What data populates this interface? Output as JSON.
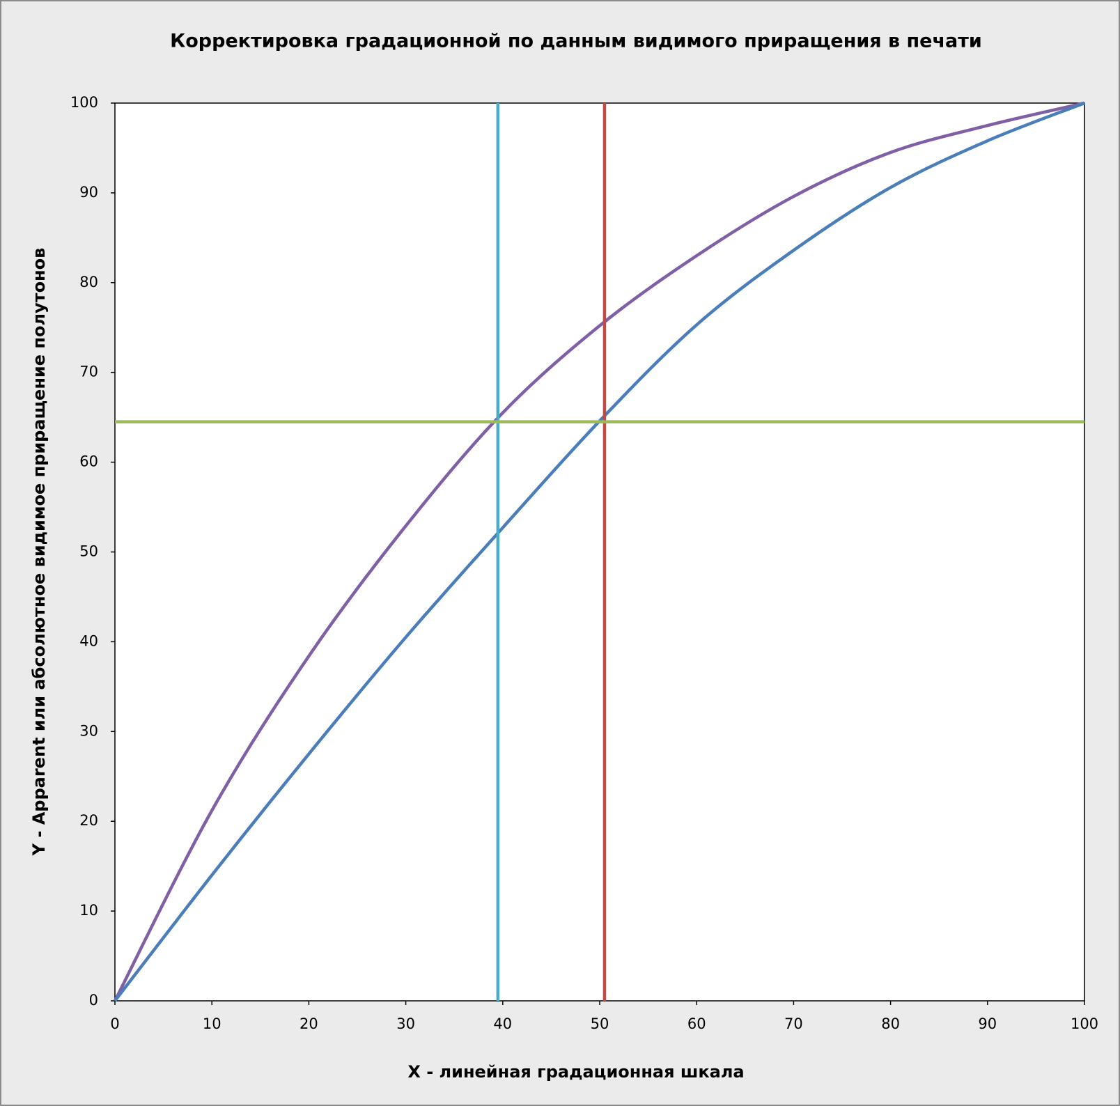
{
  "chart_data": {
    "type": "line",
    "title": "Корректировка градационной по данным видимого приращения в печати",
    "x_label": "X  -  линейная  градационная  шкала",
    "y_label": "Y  -  Apparent  или  абсолютное  видимое  приращение  полутонов",
    "xlim": [
      0,
      100
    ],
    "ylim": [
      0,
      100
    ],
    "xticks": [
      0,
      10,
      20,
      30,
      40,
      50,
      60,
      70,
      80,
      90,
      100
    ],
    "yticks": [
      0,
      10,
      20,
      30,
      40,
      50,
      60,
      70,
      80,
      90,
      100
    ],
    "grid": false,
    "series": [
      {
        "color": "#7f5fa5",
        "x": [
          0,
          10,
          20,
          30,
          40,
          50,
          60,
          70,
          80,
          90,
          100
        ],
        "values": [
          0,
          21.2,
          38.4,
          52.9,
          65.5,
          75.2,
          83,
          89.6,
          94.5,
          97.5,
          100
        ]
      },
      {
        "color": "#4a7ebb",
        "x": [
          0,
          10,
          20,
          30,
          40,
          50,
          60,
          70,
          80,
          90,
          100
        ],
        "values": [
          0,
          14,
          27.5,
          40.5,
          52.7,
          64.6,
          75.3,
          83.6,
          90.6,
          95.8,
          100
        ]
      },
      {
        "color": "#4bacc6",
        "x": [
          39.5,
          39.5
        ],
        "values": [
          0,
          100
        ]
      },
      {
        "color": "#be4b48",
        "x": [
          50.5,
          50.5
        ],
        "values": [
          0,
          100
        ]
      },
      {
        "color": "#9bbb59",
        "x": [
          0,
          100
        ],
        "values": [
          64.5,
          64.5
        ]
      }
    ]
  }
}
